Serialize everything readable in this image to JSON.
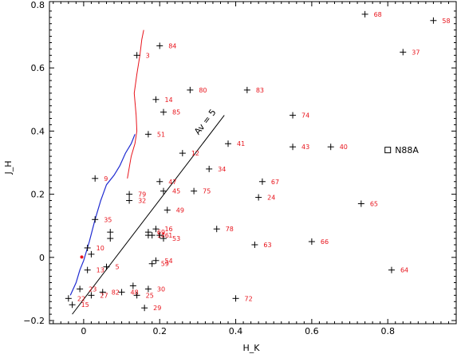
{
  "chart_data": {
    "type": "scatter",
    "xlabel": "H_K",
    "ylabel": "J_H",
    "xlim": [
      -0.09,
      0.98
    ],
    "ylim": [
      -0.21,
      0.81
    ],
    "x_ticks": [
      0,
      0.2,
      0.4,
      0.6,
      0.8
    ],
    "x_tick_labels": [
      "0",
      "0.2",
      "0.4",
      "0.6",
      "0.8"
    ],
    "y_ticks": [
      -0.2,
      0,
      0.2,
      0.4,
      0.6,
      0.8
    ],
    "y_tick_labels": [
      "−0.2",
      "0",
      "0.2",
      "0.4",
      "0.6",
      "0.8"
    ],
    "colors": {
      "points": "#000000",
      "labels": "#e8131b",
      "giant_branch": "#e8131b",
      "dwarf_branch": "#1f2bd1",
      "reddening_vector": "#000000"
    },
    "points": [
      {
        "label": "68",
        "x": 0.74,
        "y": 0.77
      },
      {
        "label": "58",
        "x": 0.92,
        "y": 0.75
      },
      {
        "label": "37",
        "x": 0.84,
        "y": 0.65
      },
      {
        "label": "84",
        "x": 0.2,
        "y": 0.67
      },
      {
        "label": "3",
        "x": 0.14,
        "y": 0.64
      },
      {
        "label": "80",
        "x": 0.28,
        "y": 0.53
      },
      {
        "label": "83",
        "x": 0.43,
        "y": 0.53
      },
      {
        "label": "14",
        "x": 0.19,
        "y": 0.5
      },
      {
        "label": "85",
        "x": 0.21,
        "y": 0.46
      },
      {
        "label": "74",
        "x": 0.55,
        "y": 0.45
      },
      {
        "label": "51",
        "x": 0.17,
        "y": 0.39
      },
      {
        "label": "41",
        "x": 0.38,
        "y": 0.36
      },
      {
        "label": "43",
        "x": 0.55,
        "y": 0.35
      },
      {
        "label": "40",
        "x": 0.65,
        "y": 0.35
      },
      {
        "label": "12",
        "x": 0.26,
        "y": 0.33
      },
      {
        "label": "34",
        "x": 0.33,
        "y": 0.28
      },
      {
        "label": "9",
        "x": 0.03,
        "y": 0.25
      },
      {
        "label": "47",
        "x": 0.2,
        "y": 0.24
      },
      {
        "label": "67",
        "x": 0.47,
        "y": 0.24
      },
      {
        "label": "79",
        "x": 0.12,
        "y": 0.2
      },
      {
        "label": "45",
        "x": 0.21,
        "y": 0.21
      },
      {
        "label": "75",
        "x": 0.29,
        "y": 0.21
      },
      {
        "label": "32",
        "x": 0.12,
        "y": 0.18
      },
      {
        "label": "24",
        "x": 0.46,
        "y": 0.19
      },
      {
        "label": "65",
        "x": 0.73,
        "y": 0.17
      },
      {
        "label": "49",
        "x": 0.22,
        "y": 0.15
      },
      {
        "label": "35",
        "x": 0.03,
        "y": 0.12
      },
      {
        "label": "16",
        "x": 0.19,
        "y": 0.09
      },
      {
        "label": "78",
        "x": 0.35,
        "y": 0.09
      },
      {
        "label": "69",
        "x": 0.17,
        "y": 0.08
      },
      {
        "label": "",
        "x": 0.07,
        "y": 0.08
      },
      {
        "label": "17",
        "x": 0.17,
        "y": 0.07
      },
      {
        "label": "46",
        "x": 0.18,
        "y": 0.07
      },
      {
        "label": "1",
        "x": 0.2,
        "y": 0.07
      },
      {
        "label": "53",
        "x": 0.21,
        "y": 0.06
      },
      {
        "label": "",
        "x": 0.07,
        "y": 0.06
      },
      {
        "label": "66",
        "x": 0.6,
        "y": 0.05
      },
      {
        "label": "63",
        "x": 0.45,
        "y": 0.04
      },
      {
        "label": "10",
        "x": 0.01,
        "y": 0.03
      },
      {
        "label": "",
        "x": 0.02,
        "y": 0.01
      },
      {
        "label": "54",
        "x": 0.19,
        "y": -0.01
      },
      {
        "label": "59",
        "x": 0.18,
        "y": -0.02
      },
      {
        "label": "5",
        "x": 0.06,
        "y": -0.03
      },
      {
        "label": "13",
        "x": 0.01,
        "y": -0.04
      },
      {
        "label": "64",
        "x": 0.81,
        "y": -0.04
      },
      {
        "label": "30",
        "x": 0.17,
        "y": -0.1
      },
      {
        "label": "23",
        "x": -0.01,
        "y": -0.1
      },
      {
        "label": "82",
        "x": 0.05,
        "y": -0.11
      },
      {
        "label": "48",
        "x": 0.1,
        "y": -0.11
      },
      {
        "label": "27",
        "x": 0.02,
        "y": -0.12
      },
      {
        "label": "25",
        "x": 0.14,
        "y": -0.12
      },
      {
        "label": "22",
        "x": -0.04,
        "y": -0.13
      },
      {
        "label": "72",
        "x": 0.4,
        "y": -0.13
      },
      {
        "label": "15",
        "x": -0.03,
        "y": -0.15
      },
      {
        "label": "29",
        "x": 0.16,
        "y": -0.16
      },
      {
        "label": "",
        "x": 0.13,
        "y": -0.09
      }
    ],
    "annotations": {
      "reddening_vector_label": "Av = 5",
      "reddening_vector": {
        "from": [
          -0.03,
          -0.18
        ],
        "to": [
          0.37,
          0.45
        ]
      },
      "reference_point_label": "N88A",
      "reference_point": {
        "x": 0.8,
        "y": 0.34
      },
      "red_point": {
        "x": -0.005,
        "y": 0.001
      }
    },
    "giant_branch": [
      [
        0.115,
        0.25
      ],
      [
        0.125,
        0.32
      ],
      [
        0.135,
        0.36
      ],
      [
        0.14,
        0.4
      ],
      [
        0.138,
        0.45
      ],
      [
        0.133,
        0.52
      ],
      [
        0.14,
        0.58
      ],
      [
        0.148,
        0.64
      ],
      [
        0.153,
        0.69
      ],
      [
        0.158,
        0.72
      ]
    ],
    "dwarf_branch": [
      [
        -0.035,
        -0.12
      ],
      [
        -0.02,
        -0.08
      ],
      [
        -0.01,
        -0.04
      ],
      [
        0.0,
        -0.01
      ],
      [
        0.015,
        0.05
      ],
      [
        0.03,
        0.12
      ],
      [
        0.045,
        0.18
      ],
      [
        0.06,
        0.23
      ],
      [
        0.08,
        0.26
      ],
      [
        0.095,
        0.29
      ],
      [
        0.11,
        0.33
      ],
      [
        0.125,
        0.36
      ],
      [
        0.135,
        0.39
      ]
    ]
  }
}
